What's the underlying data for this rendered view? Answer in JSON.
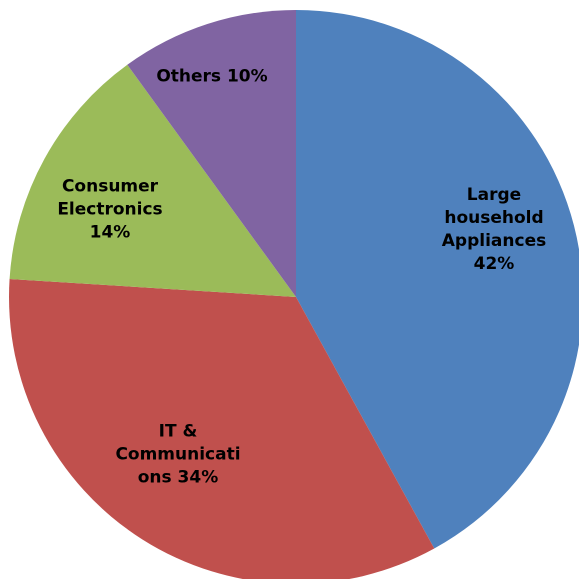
{
  "chart_data": {
    "type": "pie",
    "slices": [
      {
        "label": "Large household Appliances",
        "text": "Large\nhousehold\nAppliances\n42%",
        "value": 42,
        "color": "#4F81BD"
      },
      {
        "label": "IT & Communications",
        "text": "IT &\nCommunicati\nons 34%",
        "value": 34,
        "color": "#C0504D"
      },
      {
        "label": "Consumer Electronics",
        "text": "Consumer\nElectronics\n14%",
        "value": 14,
        "color": "#9BBB59"
      },
      {
        "label": "Others",
        "text": "Others 10%",
        "value": 10,
        "color": "#8064A2"
      }
    ],
    "start_angle_deg": 0,
    "direction": "clockwise"
  }
}
